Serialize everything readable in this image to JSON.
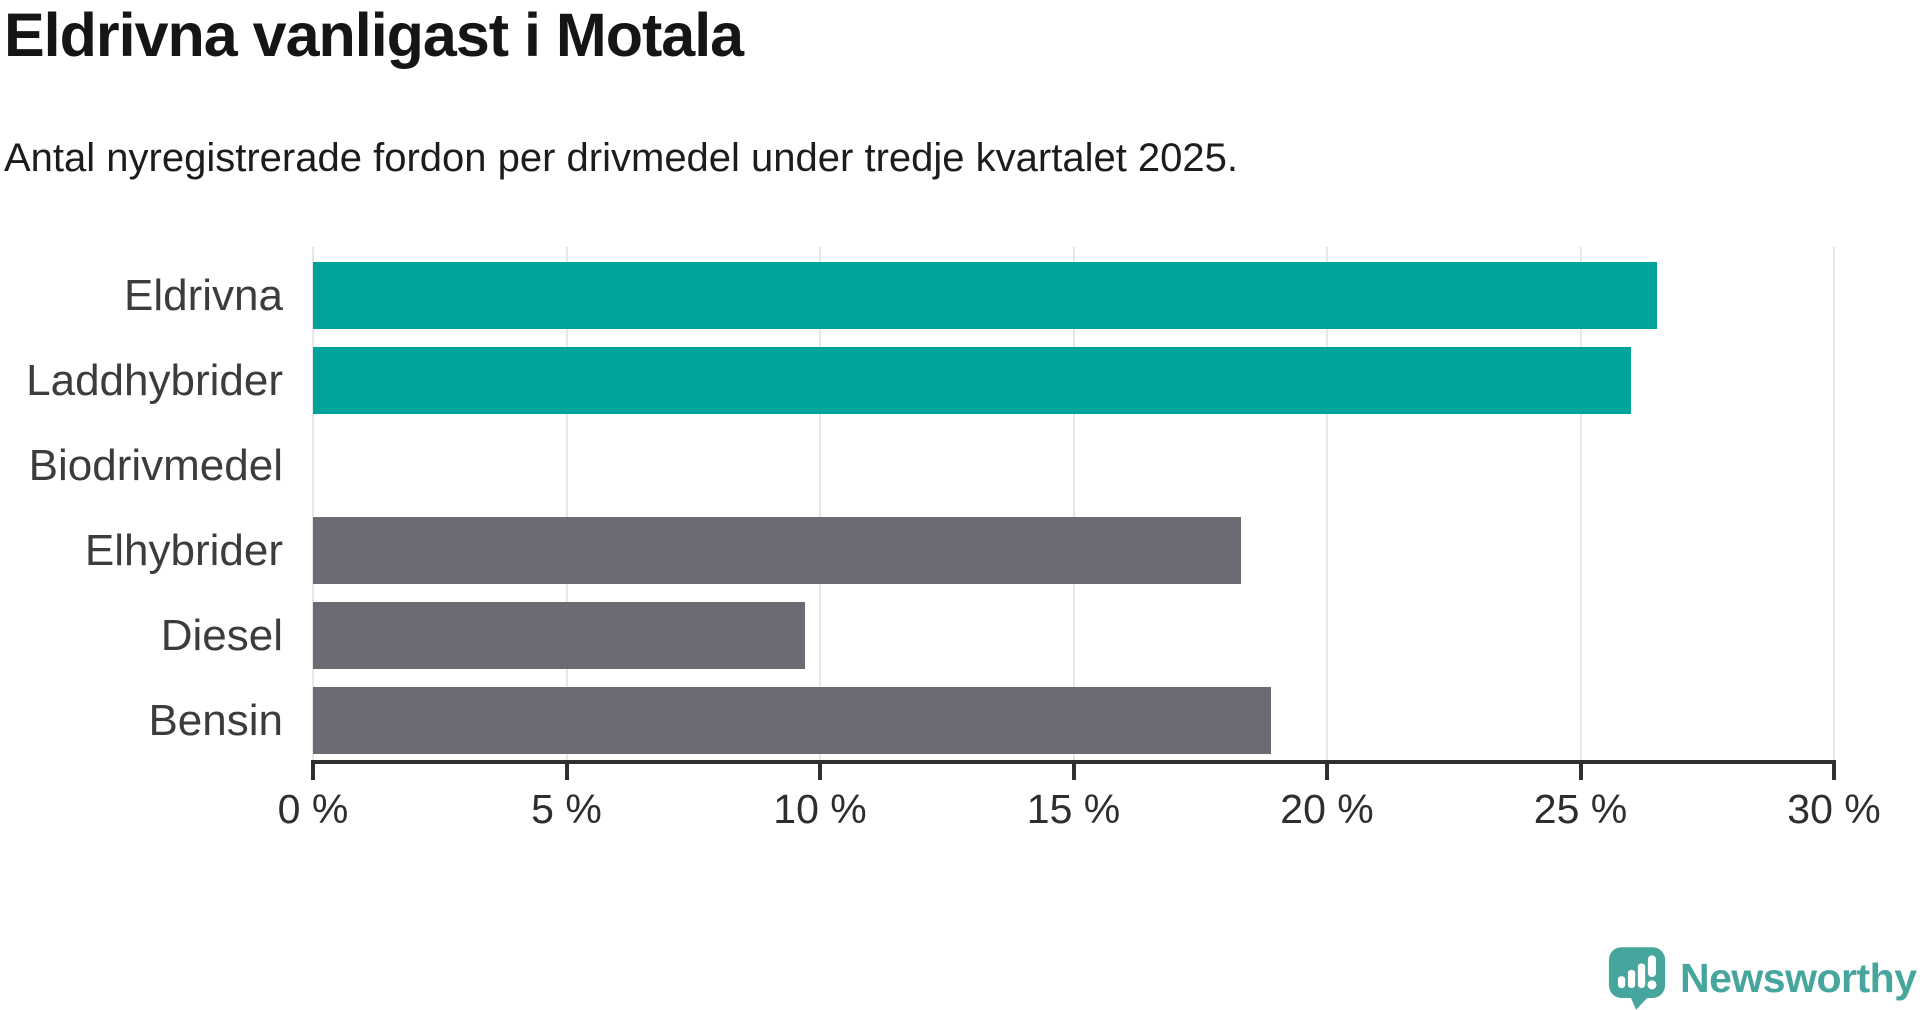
{
  "header": {
    "title": "Eldrivna vanligast i Motala",
    "subtitle": "Antal nyregistrerade fordon per drivmedel under tredje kvartalet 2025."
  },
  "chart_data": {
    "type": "bar",
    "orientation": "horizontal",
    "title": "Eldrivna vanligast i Motala",
    "subtitle": "Antal nyregistrerade fordon per drivmedel under tredje kvartalet 2025.",
    "categories": [
      "Eldrivna",
      "Laddhybrider",
      "Biodrivmedel",
      "Elhybrider",
      "Diesel",
      "Bensin"
    ],
    "values": [
      26.5,
      26.0,
      0,
      18.3,
      9.7,
      18.9
    ],
    "unit": "%",
    "xlim": [
      0,
      30
    ],
    "x_ticks": [
      0,
      5,
      10,
      15,
      20,
      25,
      30
    ],
    "x_tick_labels": [
      "0 %",
      "5 %",
      "10 %",
      "15 %",
      "20 %",
      "25 %",
      "30 %"
    ],
    "grid": true,
    "legend": false,
    "bar_colors": [
      "#00a49b",
      "#00a49b",
      "#6c6a72",
      "#6c6a72",
      "#6c6a72",
      "#6c6a72"
    ],
    "highlight_color": "#00a49b",
    "base_color": "#6c6a72"
  },
  "footer": {
    "brand": "Newsworthy",
    "logo_icon": "newsworthy-speech-bubble-chart-icon",
    "brand_color": "#46a59c"
  }
}
